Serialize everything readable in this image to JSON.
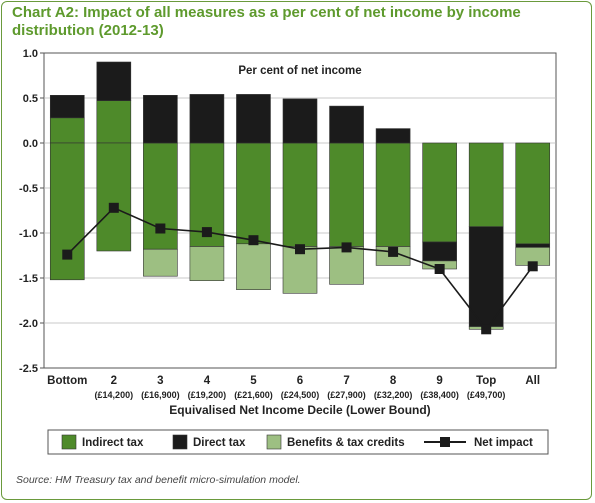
{
  "title_lines": [
    "Chart A2: Impact of all measures as a per cent of net income by income",
    "distribution (2012-13)"
  ],
  "source": "Source: HM Treasury tax and benefit micro-simulation model.",
  "chart_data": {
    "type": "bar",
    "stacked": true,
    "title": "Per cent of net income",
    "xlabel": "Equivalised Net Income Decile (Lower Bound)",
    "ylabel": "",
    "ylim": [
      -2.5,
      1.0
    ],
    "yticks": [
      "1.0",
      "0.5",
      "0.0",
      "-0.5",
      "-1.0",
      "-1.5",
      "-2.0",
      "-2.5"
    ],
    "grid": true,
    "legend_position": "bottom",
    "categories": [
      "Bottom",
      "2",
      "3",
      "4",
      "5",
      "6",
      "7",
      "8",
      "9",
      "Top",
      "All"
    ],
    "category_sublabels": [
      "",
      "(£14,200)",
      "(£16,900)",
      "(£19,200)",
      "(£21,600)",
      "(£24,500)",
      "(£27,900)",
      "(£32,200)",
      "(£38,400)",
      "(£49,700)",
      ""
    ],
    "series": [
      {
        "name": "Indirect tax",
        "color": "#4e8a2a",
        "values": [
          0.28,
          0.47,
          0.0,
          0.0,
          0.0,
          0.0,
          0.0,
          0.0,
          0.0,
          0.0,
          0.0
        ],
        "neg_values": [
          -1.52,
          -1.2,
          -1.18,
          -1.15,
          -1.12,
          -1.15,
          -1.15,
          -1.15,
          -1.1,
          -0.93,
          -1.12
        ]
      },
      {
        "name": "Direct tax",
        "color": "#1b1b1b",
        "values": [
          0.25,
          0.43,
          0.53,
          0.54,
          0.54,
          0.49,
          0.41,
          0.16,
          0.0,
          0.0,
          0.0
        ],
        "neg_values": [
          0.0,
          0.0,
          0.0,
          0.0,
          0.0,
          0.0,
          0.0,
          0.0,
          -0.21,
          -1.11,
          -0.04
        ]
      },
      {
        "name": "Benefits & tax credits",
        "color": "#9dbf82",
        "values": [
          0.0,
          0.0,
          0.0,
          0.0,
          0.0,
          0.0,
          0.0,
          0.0,
          0.0,
          0.0,
          0.0
        ],
        "neg_values": [
          0.0,
          0.0,
          -0.3,
          -0.38,
          -0.51,
          -0.52,
          -0.42,
          -0.21,
          -0.09,
          -0.03,
          -0.2
        ]
      }
    ],
    "line_series": {
      "name": "Net impact",
      "color": "#1b1b1b",
      "values": [
        -1.24,
        -0.72,
        -0.95,
        -0.99,
        -1.08,
        -1.18,
        -1.16,
        -1.21,
        -1.4,
        -2.07,
        -1.37
      ]
    }
  }
}
